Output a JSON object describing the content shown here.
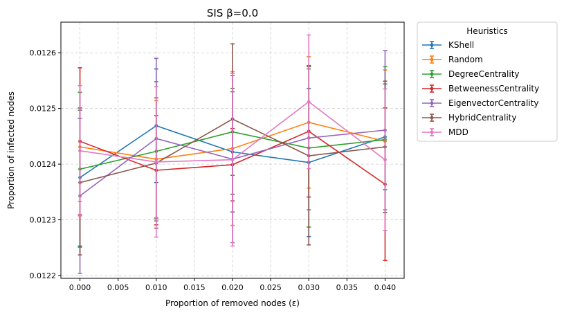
{
  "chart_data": {
    "type": "line",
    "title": "SIS β=0.0",
    "xlabel": "Proportion of removed nodes (ε)",
    "ylabel": "Proportion of infected nodes",
    "x": [
      0.0,
      0.01,
      0.02,
      0.03,
      0.04
    ],
    "xlim": [
      -0.0025,
      0.0425
    ],
    "ylim": [
      0.012195,
      0.012655
    ],
    "xticks": [
      0.0,
      0.005,
      0.01,
      0.015,
      0.02,
      0.025,
      0.03,
      0.035,
      0.04
    ],
    "xtick_labels": [
      "0.000",
      "0.005",
      "0.010",
      "0.015",
      "0.020",
      "0.025",
      "0.030",
      "0.035",
      "0.040"
    ],
    "yticks": [
      0.0122,
      0.0123,
      0.0124,
      0.0125,
      0.0126
    ],
    "ytick_labels": [
      "0.0122",
      "0.0123",
      "0.0124",
      "0.0125",
      "0.0126"
    ],
    "grid": true,
    "legend": {
      "title": "Heuristics",
      "placement": "outside-upper-right"
    },
    "series": [
      {
        "name": "KShell",
        "color": "#1f77b4",
        "values": [
          0.012376,
          0.012469,
          0.012422,
          0.012403,
          0.012449
        ],
        "yerr": [
          0.000125,
          0.000102,
          0.000108,
          0.000133,
          9.5e-05
        ]
      },
      {
        "name": "Random",
        "color": "#ff7f0e",
        "values": [
          0.012431,
          0.012409,
          0.012428,
          0.012475,
          0.012441
        ],
        "yerr": [
          9.8e-05,
          0.000105,
          0.000138,
          0.000118,
          0.000128
        ]
      },
      {
        "name": "DegreeCentrality",
        "color": "#2ca02c",
        "values": [
          0.012391,
          0.012423,
          0.012458,
          0.012429,
          0.012444
        ],
        "yerr": [
          0.000138,
          0.000125,
          7.8e-05,
          0.000142,
          0.000131
        ]
      },
      {
        "name": "BetweenessCentrality",
        "color": "#d62728",
        "values": [
          0.012441,
          0.012389,
          0.012399,
          0.012459,
          0.012364
        ],
        "yerr": [
          0.000132,
          9.8e-05,
          6.5e-05,
          0.000118,
          0.000137
        ]
      },
      {
        "name": "EigenvectorCentrality",
        "color": "#9467bd",
        "values": [
          0.012343,
          0.012446,
          0.012409,
          0.012447,
          0.012461
        ],
        "yerr": [
          0.000139,
          0.000144,
          0.00015,
          0.000129,
          0.000143
        ]
      },
      {
        "name": "HybridCentrality",
        "color": "#8c564b",
        "values": [
          0.012367,
          0.012402,
          0.012481,
          0.012415,
          0.012431
        ],
        "yerr": [
          0.00013,
          0.000117,
          0.000135,
          0.00016,
          0.000118
        ]
      },
      {
        "name": "MDD",
        "color": "#e377c2",
        "values": [
          0.012424,
          0.012404,
          0.012408,
          0.012512,
          0.012408
        ],
        "yerr": [
          0.000117,
          0.000135,
          0.000155,
          0.00012,
          0.000127
        ]
      }
    ]
  }
}
